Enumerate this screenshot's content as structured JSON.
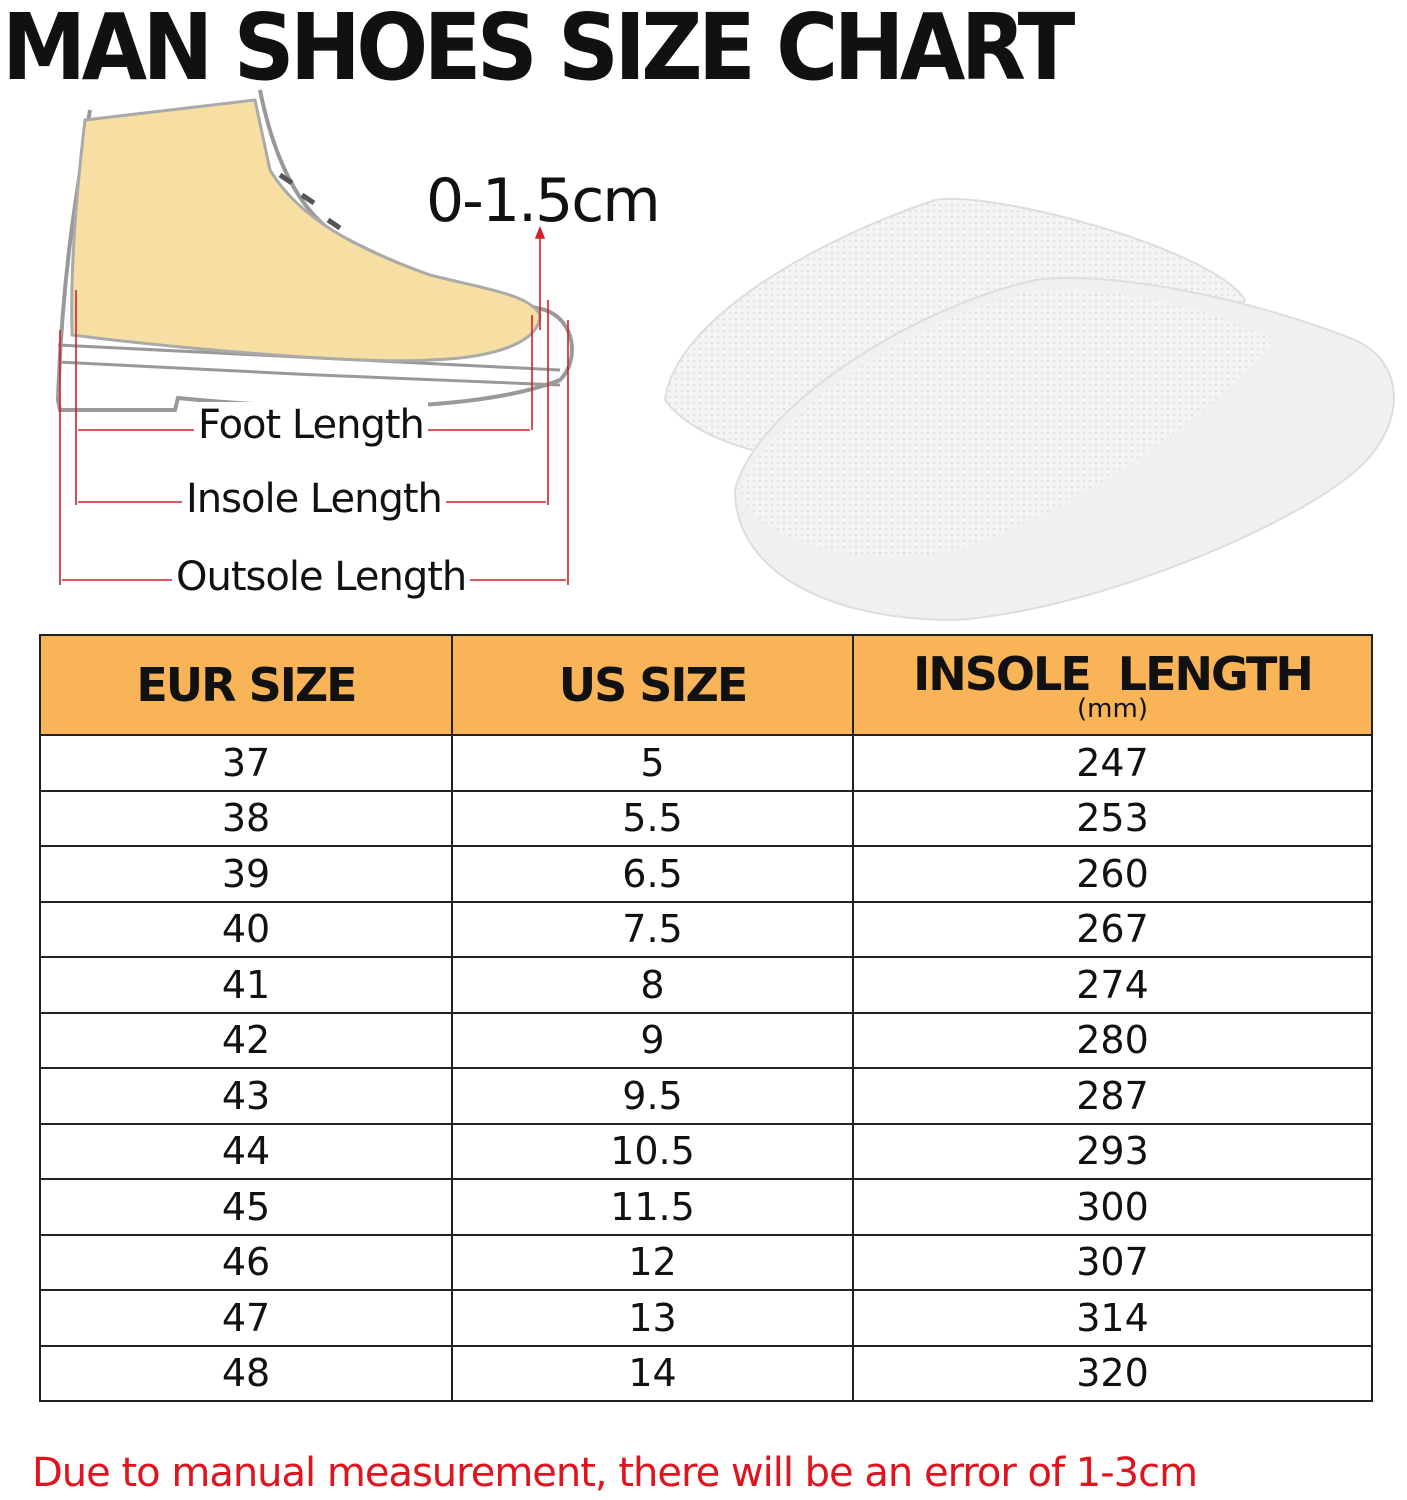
{
  "title": "MAN SHOES SIZE CHART",
  "diagram": {
    "gap_label": "0-1.5cm",
    "foot_length": "Foot Length",
    "insole_length": "Insole Length",
    "outsole_length": "Outsole Length"
  },
  "colors": {
    "header": "#F8B457",
    "measure_lines": "#D0202A",
    "note": "#E0141E",
    "foot": "#F7DFA3"
  },
  "table": {
    "headers": {
      "eur": "EUR SIZE",
      "us": "US SIZE",
      "insole": "INSOLE  LENGTH",
      "insole_unit": "(mm)"
    },
    "rows": [
      {
        "eur": "37",
        "us": "5",
        "insole": "247"
      },
      {
        "eur": "38",
        "us": "5.5",
        "insole": "253"
      },
      {
        "eur": "39",
        "us": "6.5",
        "insole": "260"
      },
      {
        "eur": "40",
        "us": "7.5",
        "insole": "267"
      },
      {
        "eur": "41",
        "us": "8",
        "insole": "274"
      },
      {
        "eur": "42",
        "us": "9",
        "insole": "280"
      },
      {
        "eur": "43",
        "us": "9.5",
        "insole": "287"
      },
      {
        "eur": "44",
        "us": "10.5",
        "insole": "293"
      },
      {
        "eur": "45",
        "us": "11.5",
        "insole": "300"
      },
      {
        "eur": "46",
        "us": "12",
        "insole": "307"
      },
      {
        "eur": "47",
        "us": "13",
        "insole": "314"
      },
      {
        "eur": "48",
        "us": "14",
        "insole": "320"
      }
    ]
  },
  "note": "Due to manual measurement, there will be an error of 1-3cm"
}
